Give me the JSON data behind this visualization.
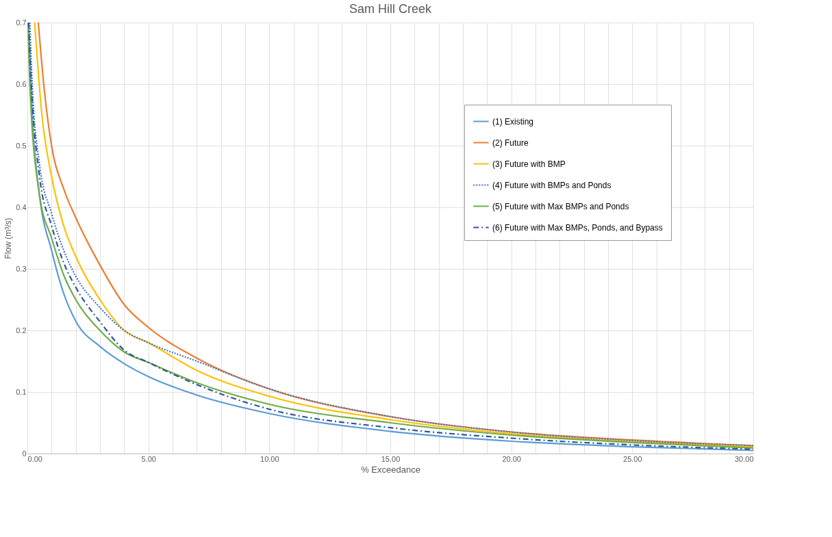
{
  "chart_data": {
    "type": "line",
    "title": "Sam Hill Creek",
    "xlabel": "% Exceedance",
    "ylabel": "Flow (m³/s)",
    "xlim": [
      0,
      30
    ],
    "ylim": [
      0,
      0.7
    ],
    "xticks": [
      {
        "value": 0,
        "label": "0.00"
      },
      {
        "value": 1,
        "label": null
      },
      {
        "value": 2,
        "label": null
      },
      {
        "value": 3,
        "label": null
      },
      {
        "value": 4,
        "label": null
      },
      {
        "value": 5,
        "label": "5.00"
      },
      {
        "value": 6,
        "label": null
      },
      {
        "value": 7,
        "label": null
      },
      {
        "value": 8,
        "label": null
      },
      {
        "value": 9,
        "label": null
      },
      {
        "value": 10,
        "label": "10.00"
      },
      {
        "value": 11,
        "label": null
      },
      {
        "value": 12,
        "label": null
      },
      {
        "value": 13,
        "label": null
      },
      {
        "value": 14,
        "label": null
      },
      {
        "value": 15,
        "label": "15.00"
      },
      {
        "value": 16,
        "label": null
      },
      {
        "value": 17,
        "label": null
      },
      {
        "value": 18,
        "label": null
      },
      {
        "value": 19,
        "label": null
      },
      {
        "value": 20,
        "label": "20.00"
      },
      {
        "value": 21,
        "label": null
      },
      {
        "value": 22,
        "label": null
      },
      {
        "value": 23,
        "label": null
      },
      {
        "value": 24,
        "label": null
      },
      {
        "value": 25,
        "label": "25.00"
      },
      {
        "value": 26,
        "label": null
      },
      {
        "value": 27,
        "label": null
      },
      {
        "value": 28,
        "label": null
      },
      {
        "value": 29,
        "label": null
      },
      {
        "value": 30,
        "label": "30.00"
      }
    ],
    "yticks": [
      0,
      0.1,
      0.2,
      0.3,
      0.4,
      0.5,
      0.6,
      0.7
    ],
    "grid": true,
    "legend": "top right",
    "marker": "none",
    "series": [
      {
        "name": "(1) Existing",
        "color": "#5b9bd5",
        "line_style": "solid",
        "x": [
          0.05,
          0.2,
          0.5,
          1,
          1.5,
          2,
          3,
          4,
          5,
          7,
          10,
          15,
          20,
          25,
          30
        ],
        "values": [
          0.7,
          0.55,
          0.42,
          0.33,
          0.26,
          0.215,
          0.174,
          0.146,
          0.125,
          0.095,
          0.065,
          0.036,
          0.02,
          0.011,
          0.005
        ]
      },
      {
        "name": "(2) Future",
        "color": "#ed7d31",
        "line_style": "solid",
        "x": [
          0.45,
          0.7,
          1,
          1.5,
          2,
          3,
          4,
          5,
          7,
          10,
          15,
          20,
          25,
          30
        ],
        "values": [
          0.7,
          0.59,
          0.5,
          0.43,
          0.383,
          0.306,
          0.242,
          0.205,
          0.155,
          0.105,
          0.06,
          0.035,
          0.022,
          0.013
        ]
      },
      {
        "name": "(3) Future with BMP",
        "color": "#ffc000",
        "line_style": "solid",
        "x": [
          0.3,
          0.6,
          1,
          1.5,
          2,
          3,
          4,
          5,
          7,
          10,
          15,
          20,
          25,
          30
        ],
        "values": [
          0.7,
          0.55,
          0.45,
          0.37,
          0.32,
          0.25,
          0.2,
          0.18,
          0.135,
          0.093,
          0.055,
          0.032,
          0.019,
          0.011
        ]
      },
      {
        "name": "(4) Future with BMPs and Ponds",
        "color": "#4472c4",
        "line_style": "dotted",
        "x": [
          0.1,
          0.2,
          0.5,
          1,
          1.5,
          2,
          3,
          4,
          5,
          7,
          10,
          15,
          20,
          25,
          30
        ],
        "values": [
          0.7,
          0.6,
          0.47,
          0.39,
          0.33,
          0.288,
          0.237,
          0.2,
          0.18,
          0.15,
          0.105,
          0.06,
          0.035,
          0.021,
          0.013
        ]
      },
      {
        "name": "(5) Future with Max BMPs and Ponds",
        "color": "#70ad47",
        "line_style": "solid",
        "x": [
          0.03,
          0.1,
          0.5,
          1,
          1.5,
          2,
          3,
          4,
          5,
          7,
          10,
          15,
          20,
          25,
          30
        ],
        "values": [
          0.7,
          0.6,
          0.42,
          0.35,
          0.29,
          0.25,
          0.2,
          0.165,
          0.148,
          0.115,
          0.08,
          0.05,
          0.03,
          0.018,
          0.009
        ]
      },
      {
        "name": "(6) Future with Max BMPs, Ponds, and Bypass",
        "color": "#2f5597",
        "line_style": "dashed",
        "x": [
          0.05,
          0.1,
          0.5,
          1,
          1.5,
          2,
          3,
          4,
          5,
          7,
          10,
          15,
          20,
          25,
          30
        ],
        "values": [
          0.7,
          0.65,
          0.45,
          0.37,
          0.31,
          0.27,
          0.214,
          0.168,
          0.148,
          0.112,
          0.072,
          0.042,
          0.025,
          0.014,
          0.007
        ]
      }
    ]
  }
}
